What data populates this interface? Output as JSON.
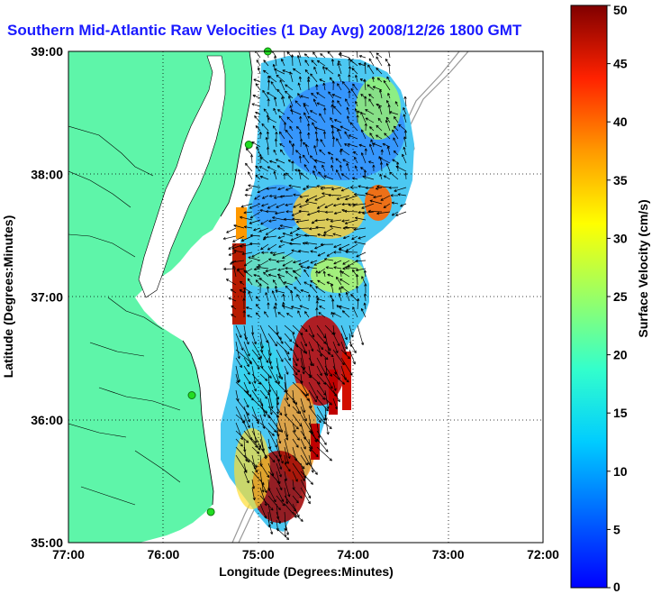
{
  "title": "Southern Mid-Atlantic Raw Velocities (1 Day Avg) 2008/12/26 1800 GMT",
  "axes": {
    "xlabel": "Longitude (Degrees:Minutes)",
    "ylabel": "Latitude (Degrees:Minutes)",
    "x_ticks": [
      "77:00",
      "76:00",
      "75:00",
      "74:00",
      "73:00",
      "72:00"
    ],
    "y_ticks": [
      "39:00",
      "38:00",
      "37:00",
      "36:00",
      "35:00"
    ],
    "x_range": [
      -77,
      -72
    ],
    "y_range": [
      35,
      39
    ],
    "grid": true
  },
  "colorbar": {
    "label": "Surface Velocity (cm/s)",
    "ticks": [
      "0",
      "5",
      "10",
      "15",
      "20",
      "25",
      "30",
      "35",
      "40",
      "45",
      "50"
    ],
    "range": [
      0,
      50
    ],
    "colormap": "jet"
  },
  "colors": {
    "land": "#5ef5a9",
    "water": "#ffffff",
    "title": "#1a1aff",
    "station": "#22dd22"
  },
  "stations": [
    {
      "lon": -74.9,
      "lat": 39.0
    },
    {
      "lon": -75.1,
      "lat": 38.24
    },
    {
      "lon": -75.7,
      "lat": 36.2
    },
    {
      "lon": -75.5,
      "lat": 35.25
    }
  ]
}
